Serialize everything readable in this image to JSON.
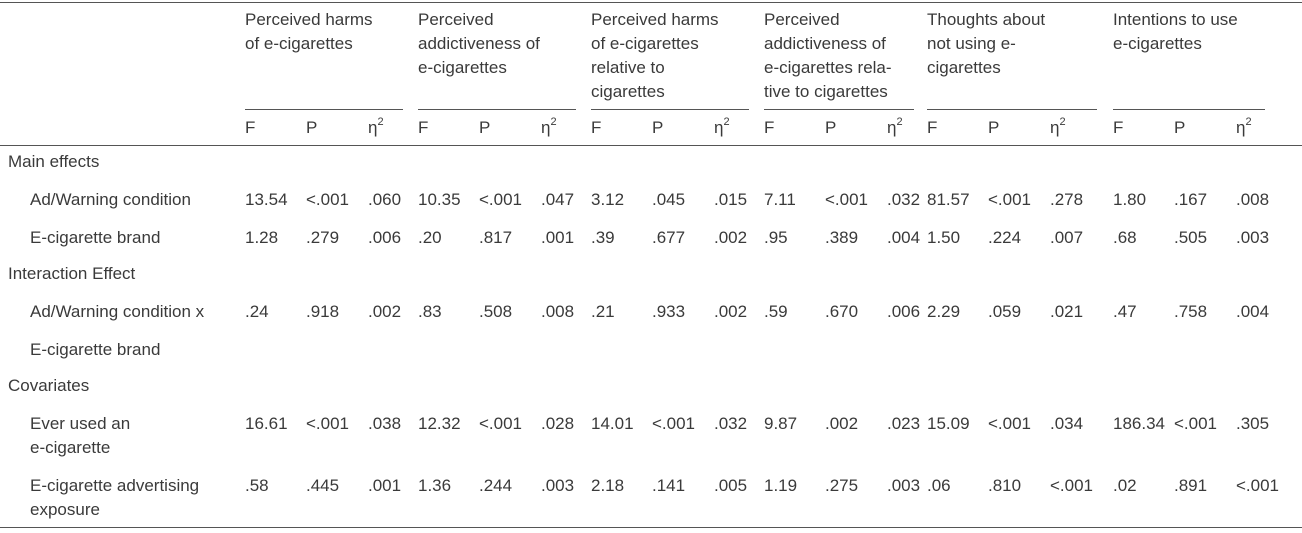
{
  "groups": [
    {
      "title": "Perceived harms\nof e-cigarettes"
    },
    {
      "title": "Perceived\naddictiveness of\ne-cigarettes"
    },
    {
      "title": "Perceived harms\nof e-cigarettes\nrelative to\ncigarettes"
    },
    {
      "title": "Perceived\naddictiveness of\ne-cigarettes rela-\ntive to cigarettes"
    },
    {
      "title": "Thoughts about\nnot using e-\ncigarettes"
    },
    {
      "title": "Intentions to use\ne-cigarettes"
    }
  ],
  "stat_labels": {
    "f": "F",
    "p": "P",
    "eta": "η",
    "eta_sup": "2"
  },
  "rows": [
    {
      "kind": "section",
      "label": "Main effects"
    },
    {
      "kind": "data",
      "label": "Ad/Warning condition",
      "values": [
        "13.54",
        "<.001",
        ".060",
        "10.35",
        "<.001",
        ".047",
        "3.12",
        ".045",
        ".015",
        "7.11",
        "<.001",
        ".032",
        "81.57",
        "<.001",
        ".278",
        "1.80",
        ".167",
        ".008"
      ]
    },
    {
      "kind": "data",
      "label": "E-cigarette brand",
      "values": [
        "1.28",
        ".279",
        ".006",
        ".20",
        ".817",
        ".001",
        ".39",
        ".677",
        ".002",
        ".95",
        ".389",
        ".004",
        "1.50",
        ".224",
        ".007",
        ".68",
        ".505",
        ".003"
      ]
    },
    {
      "kind": "section",
      "label": "Interaction Effect"
    },
    {
      "kind": "data",
      "label": "Ad/Warning condition x",
      "values": [
        ".24",
        ".918",
        ".002",
        ".83",
        ".508",
        ".008",
        ".21",
        ".933",
        ".002",
        ".59",
        ".670",
        ".006",
        "2.29",
        ".059",
        ".021",
        ".47",
        ".758",
        ".004"
      ]
    },
    {
      "kind": "cont",
      "label": "E-cigarette brand"
    },
    {
      "kind": "section",
      "label": "Covariates"
    },
    {
      "kind": "data",
      "label": "Ever used an\ne-cigarette",
      "values": [
        "16.61",
        "<.001",
        ".038",
        "12.32",
        "<.001",
        ".028",
        "14.01",
        "<.001",
        ".032",
        "9.87",
        ".002",
        ".023",
        "15.09",
        "<.001",
        ".034",
        "186.34",
        "<.001",
        ".305"
      ]
    },
    {
      "kind": "data",
      "label": "E-cigarette advertising\nexposure",
      "values": [
        ".58",
        ".445",
        ".001",
        "1.36",
        ".244",
        ".003",
        "2.18",
        ".141",
        ".005",
        "1.19",
        ".275",
        ".003",
        ".06",
        ".810",
        "<.001",
        ".02",
        ".891",
        "<.001"
      ]
    }
  ]
}
